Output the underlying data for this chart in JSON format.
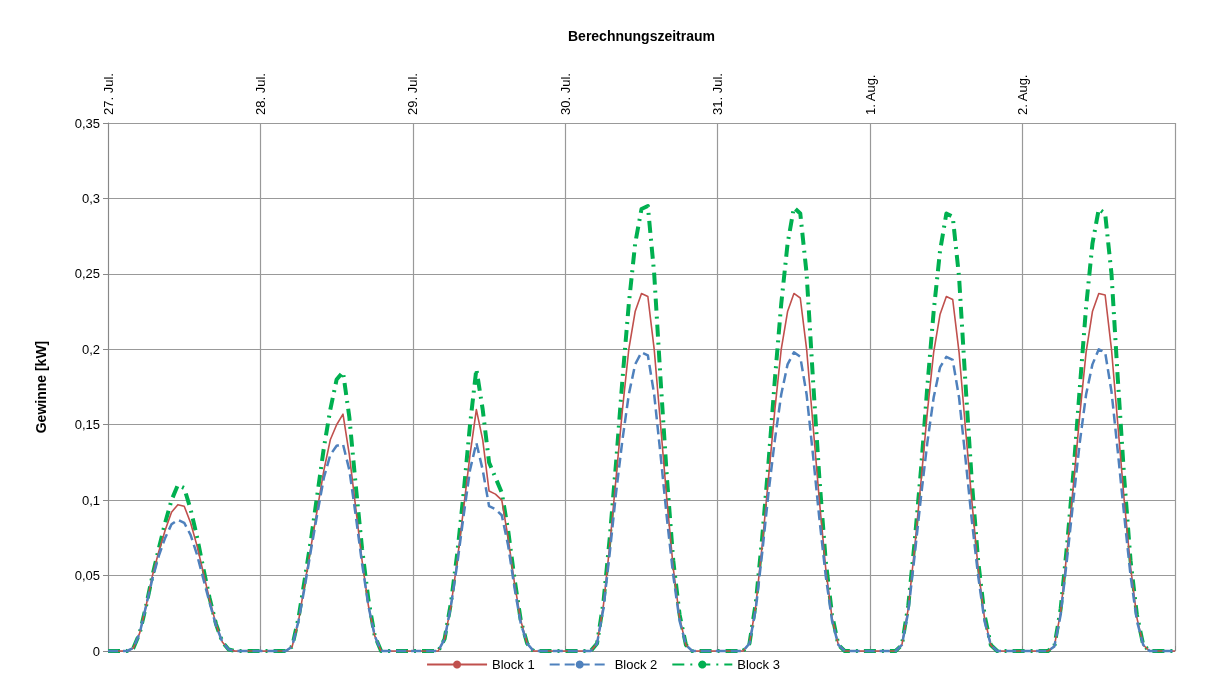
{
  "chart_data": {
    "type": "line",
    "xlabel": "Berechnungszeitraum",
    "ylabel": "Gewinne [kW]",
    "categories": [
      "27. Jul.",
      null,
      null,
      null,
      null,
      null,
      null,
      null,
      null,
      null,
      null,
      null,
      null,
      null,
      null,
      null,
      null,
      null,
      null,
      null,
      null,
      null,
      null,
      null,
      "28. Jul.",
      null,
      null,
      null,
      null,
      null,
      null,
      null,
      null,
      null,
      null,
      null,
      null,
      null,
      null,
      null,
      null,
      null,
      null,
      null,
      null,
      null,
      null,
      null,
      "29. Jul.",
      null,
      null,
      null,
      null,
      null,
      null,
      null,
      null,
      null,
      null,
      null,
      null,
      null,
      null,
      null,
      null,
      null,
      null,
      null,
      null,
      null,
      null,
      null,
      "30. Jul.",
      null,
      null,
      null,
      null,
      null,
      null,
      null,
      null,
      null,
      null,
      null,
      null,
      null,
      null,
      null,
      null,
      null,
      null,
      null,
      null,
      null,
      null,
      null,
      "31. Jul.",
      null,
      null,
      null,
      null,
      null,
      null,
      null,
      null,
      null,
      null,
      null,
      null,
      null,
      null,
      null,
      null,
      null,
      null,
      null,
      null,
      null,
      null,
      null,
      "1. Aug.",
      null,
      null,
      null,
      null,
      null,
      null,
      null,
      null,
      null,
      null,
      null,
      null,
      null,
      null,
      null,
      null,
      null,
      null,
      null,
      null,
      null,
      null,
      null,
      "2. Aug.",
      null,
      null,
      null,
      null,
      null,
      null,
      null,
      null,
      null,
      null,
      null,
      null,
      null,
      null,
      null,
      null,
      null,
      null,
      null,
      null,
      null,
      null,
      null,
      null
    ],
    "series": [
      {
        "name": "Block 1",
        "color": "#c0504d",
        "line_style": "solid",
        "values": [
          0,
          0,
          0,
          0,
          0.002,
          0.012,
          0.03,
          0.05,
          0.066,
          0.08,
          0.092,
          0.097,
          0.096,
          0.085,
          0.07,
          0.052,
          0.034,
          0.018,
          0.006,
          0.001,
          0,
          0,
          0,
          0,
          0,
          0,
          0,
          0,
          0,
          0.003,
          0.02,
          0.045,
          0.07,
          0.095,
          0.12,
          0.14,
          0.15,
          0.157,
          0.13,
          0.095,
          0.06,
          0.03,
          0.01,
          0,
          0,
          0,
          0,
          0,
          0,
          0,
          0,
          0,
          0,
          0.008,
          0.03,
          0.06,
          0.095,
          0.13,
          0.16,
          0.14,
          0.106,
          0.104,
          0.1,
          0.075,
          0.045,
          0.02,
          0.005,
          0,
          0,
          0,
          0,
          0,
          0,
          0,
          0,
          0,
          0,
          0.005,
          0.03,
          0.07,
          0.115,
          0.16,
          0.2,
          0.225,
          0.237,
          0.235,
          0.2,
          0.15,
          0.1,
          0.055,
          0.022,
          0.004,
          0,
          0,
          0,
          0,
          0,
          0,
          0,
          0,
          0,
          0.005,
          0.03,
          0.07,
          0.115,
          0.16,
          0.2,
          0.225,
          0.237,
          0.234,
          0.2,
          0.15,
          0.1,
          0.055,
          0.022,
          0.004,
          0,
          0,
          0,
          0,
          0,
          0,
          0,
          0,
          0,
          0.004,
          0.028,
          0.068,
          0.112,
          0.158,
          0.198,
          0.223,
          0.235,
          0.233,
          0.198,
          0.148,
          0.1,
          0.055,
          0.022,
          0.004,
          0,
          0,
          0,
          0,
          0,
          0,
          0,
          0,
          0,
          0.003,
          0.026,
          0.066,
          0.11,
          0.156,
          0.198,
          0.225,
          0.237,
          0.236,
          0.2,
          0.15,
          0.1,
          0.056,
          0.022,
          0.004,
          0,
          0,
          0,
          0,
          0
        ]
      },
      {
        "name": "Block 2",
        "color": "#4f81bd",
        "line_style": "dashed",
        "values": [
          0,
          0,
          0,
          0,
          0.002,
          0.012,
          0.03,
          0.048,
          0.063,
          0.075,
          0.084,
          0.087,
          0.085,
          0.077,
          0.064,
          0.048,
          0.032,
          0.017,
          0.006,
          0.001,
          0,
          0,
          0,
          0,
          0,
          0,
          0,
          0,
          0,
          0.003,
          0.02,
          0.043,
          0.068,
          0.092,
          0.115,
          0.13,
          0.136,
          0.137,
          0.12,
          0.09,
          0.058,
          0.03,
          0.01,
          0,
          0,
          0,
          0,
          0,
          0,
          0,
          0,
          0,
          0,
          0.008,
          0.03,
          0.058,
          0.09,
          0.12,
          0.138,
          0.12,
          0.096,
          0.094,
          0.09,
          0.07,
          0.042,
          0.018,
          0.005,
          0,
          0,
          0,
          0,
          0,
          0,
          0,
          0,
          0,
          0,
          0.005,
          0.028,
          0.065,
          0.105,
          0.14,
          0.17,
          0.19,
          0.198,
          0.196,
          0.17,
          0.13,
          0.088,
          0.05,
          0.02,
          0.004,
          0,
          0,
          0,
          0,
          0,
          0,
          0,
          0,
          0,
          0.005,
          0.028,
          0.065,
          0.105,
          0.14,
          0.17,
          0.19,
          0.198,
          0.195,
          0.17,
          0.13,
          0.088,
          0.05,
          0.02,
          0.004,
          0,
          0,
          0,
          0,
          0,
          0,
          0,
          0,
          0,
          0.004,
          0.026,
          0.063,
          0.102,
          0.138,
          0.168,
          0.188,
          0.195,
          0.193,
          0.168,
          0.128,
          0.087,
          0.05,
          0.02,
          0.004,
          0,
          0,
          0,
          0,
          0,
          0,
          0,
          0,
          0,
          0.003,
          0.024,
          0.061,
          0.1,
          0.138,
          0.17,
          0.19,
          0.2,
          0.198,
          0.172,
          0.132,
          0.09,
          0.05,
          0.02,
          0.004,
          0,
          0,
          0,
          0,
          0
        ]
      },
      {
        "name": "Block 3",
        "color": "#00b050",
        "line_style": "dashed",
        "values": [
          0,
          0,
          0,
          0,
          0.002,
          0.012,
          0.03,
          0.05,
          0.068,
          0.085,
          0.1,
          0.11,
          0.108,
          0.094,
          0.076,
          0.055,
          0.035,
          0.018,
          0.006,
          0.001,
          0,
          0,
          0,
          0,
          0,
          0,
          0,
          0,
          0,
          0.003,
          0.022,
          0.048,
          0.075,
          0.105,
          0.135,
          0.16,
          0.18,
          0.185,
          0.155,
          0.11,
          0.068,
          0.034,
          0.01,
          0,
          0,
          0,
          0,
          0,
          0,
          0,
          0,
          0,
          0,
          0.008,
          0.032,
          0.065,
          0.105,
          0.15,
          0.187,
          0.16,
          0.125,
          0.115,
          0.105,
          0.08,
          0.048,
          0.02,
          0.005,
          0,
          0,
          0,
          0,
          0,
          0,
          0,
          0,
          0,
          0,
          0.005,
          0.032,
          0.075,
          0.125,
          0.18,
          0.23,
          0.27,
          0.293,
          0.295,
          0.25,
          0.18,
          0.115,
          0.06,
          0.024,
          0.004,
          0,
          0,
          0,
          0,
          0,
          0,
          0,
          0,
          0,
          0.005,
          0.032,
          0.075,
          0.125,
          0.18,
          0.23,
          0.27,
          0.294,
          0.29,
          0.25,
          0.18,
          0.115,
          0.06,
          0.024,
          0.004,
          0,
          0,
          0,
          0,
          0,
          0,
          0,
          0,
          0,
          0.004,
          0.03,
          0.072,
          0.12,
          0.175,
          0.225,
          0.265,
          0.29,
          0.288,
          0.248,
          0.178,
          0.113,
          0.06,
          0.024,
          0.004,
          0,
          0,
          0,
          0,
          0,
          0,
          0,
          0,
          0,
          0.003,
          0.028,
          0.07,
          0.118,
          0.174,
          0.228,
          0.27,
          0.293,
          0.29,
          0.25,
          0.18,
          0.115,
          0.06,
          0.024,
          0.004,
          0,
          0,
          0,
          0,
          0
        ]
      }
    ],
    "ylim": [
      0,
      0.35
    ],
    "yticks": [
      {
        "value": 0,
        "label": "0"
      },
      {
        "value": 0.05,
        "label": "0,05"
      },
      {
        "value": 0.1,
        "label": "0,1"
      },
      {
        "value": 0.15,
        "label": "0,15"
      },
      {
        "value": 0.2,
        "label": "0,2"
      },
      {
        "value": 0.25,
        "label": "0,25"
      },
      {
        "value": 0.3,
        "label": "0,3"
      },
      {
        "value": 0.35,
        "label": "0,35"
      }
    ],
    "grid": true,
    "legend": "bottom",
    "marker": "none"
  }
}
